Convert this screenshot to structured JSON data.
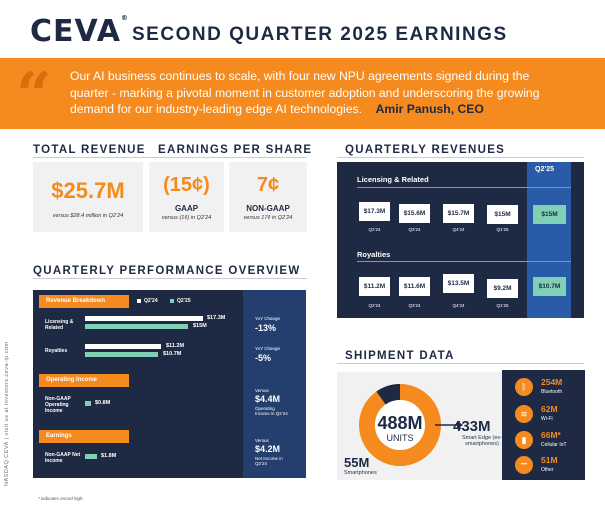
{
  "header": {
    "logo": "CEVA",
    "logo_mark": "®",
    "title": "SECOND QUARTER 2025 EARNINGS"
  },
  "quote": {
    "mark": "“",
    "text": "Our AI business continues to scale, with four new NPU agreements signed during the quarter - marking a pivotal moment in customer adoption and underscoring the growing demand for our industry-leading edge AI technologies.",
    "author": "Amir Panush, CEO"
  },
  "total_revenue": {
    "heading": "TOTAL REVENUE",
    "value": "$25.7M",
    "note": "versus $28.4 million in Q2’24"
  },
  "eps": {
    "heading": "EARNINGS PER SHARE",
    "gaap_value": "(15¢)",
    "gaap_label": "GAAP",
    "gaap_note": "versus (1¢) in Q2’24",
    "nongaap_value": "7¢",
    "nongaap_label": "NON-GAAP",
    "nongaap_note": "versus 17¢ in Q2’24"
  },
  "quarterly_revenues": {
    "heading": "QUARTERLY REVENUES",
    "highlight_label": "Q2’25",
    "licensing_heading": "Licensing & Related",
    "royalties_heading": "Royalties",
    "quarters": [
      "Q2’24",
      "Q3’24",
      "Q4’24",
      "Q1’25"
    ],
    "licensing_values": [
      "$17.3M",
      "$15.6M",
      "$15.7M",
      "$15M",
      "$15M"
    ],
    "royalties_values": [
      "$11.2M",
      "$11.6M",
      "$13.5M",
      "$9.2M",
      "$10.7M"
    ]
  },
  "performance": {
    "heading": "QUARTERLY PERFORMANCE OVERVIEW",
    "legend_q224": "Q2’24",
    "legend_q225": "Q2’25",
    "revenue_tag": "Revenue Breakdown",
    "licensing_label": "Licensing & Related",
    "licensing_q224": "$17.3M",
    "licensing_q225": "$15M",
    "licensing_yoy_label": "YoY Change",
    "licensing_yoy": "-13%",
    "royalties_label": "Royalties",
    "royalties_q224": "$11.2M",
    "royalties_q225": "$10.7M",
    "royalties_yoy_label": "YoY Change",
    "royalties_yoy": "-5%",
    "operating_tag": "Operating Income",
    "operating_label": "Non-GAAP Operating Income",
    "operating_value": "$0.8M",
    "operating_vs_label": "Versus",
    "operating_vs_value": "$4.4M",
    "operating_vs_note": "Operating Income in Q2’24",
    "earnings_tag": "Earnings",
    "earnings_label": "Non-GAAP Net Income",
    "earnings_value": "$1.8M",
    "earnings_vs_label": "Versus",
    "earnings_vs_value": "$4.2M",
    "earnings_vs_note": "Net Income in Q2’24"
  },
  "shipment": {
    "heading": "SHIPMENT DATA",
    "total_value": "488M",
    "total_label": "UNITS",
    "smart_edge_value": "433M",
    "smart_edge_label": "Smart Edge (ex-smartphones)",
    "smartphones_value": "55M",
    "smartphones_label": "Smartphones",
    "categories": [
      {
        "value": "254M",
        "label": "Bluetooth",
        "icon": "bluetooth-icon",
        "glyph": "ᛒ"
      },
      {
        "value": "62M",
        "label": "Wi-Fi",
        "icon": "wifi-icon",
        "glyph": "≋"
      },
      {
        "value": "66M*",
        "label": "Cellular IoT",
        "icon": "cellular-icon",
        "glyph": "▮"
      },
      {
        "value": "51M",
        "label": "Other",
        "icon": "other-icon",
        "glyph": "•••"
      }
    ]
  },
  "sidebar": "NASDAQ:CEVA  |  visit us at investors.ceva-ip.com",
  "footnote": "* indicates record high.",
  "colors": {
    "navy": "#1e2a44",
    "orange": "#f58a1f",
    "mint": "#7fd0b5",
    "blue": "#2a5ba8"
  }
}
